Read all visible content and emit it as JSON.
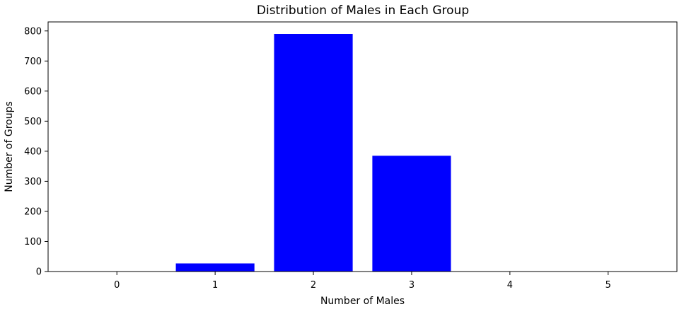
{
  "chart_data": {
    "type": "bar",
    "title": "Distribution of Males in Each Group",
    "xlabel": "Number of Males",
    "ylabel": "Number of Groups",
    "categories": [
      "0",
      "1",
      "2",
      "3",
      "4",
      "5"
    ],
    "values": [
      0,
      27,
      790,
      385,
      0,
      0
    ],
    "ylim": [
      0,
      830
    ],
    "yticks": [
      0,
      100,
      200,
      300,
      400,
      500,
      600,
      700,
      800
    ],
    "bar_color": "#0000ff",
    "grid": false,
    "legend": "none"
  }
}
